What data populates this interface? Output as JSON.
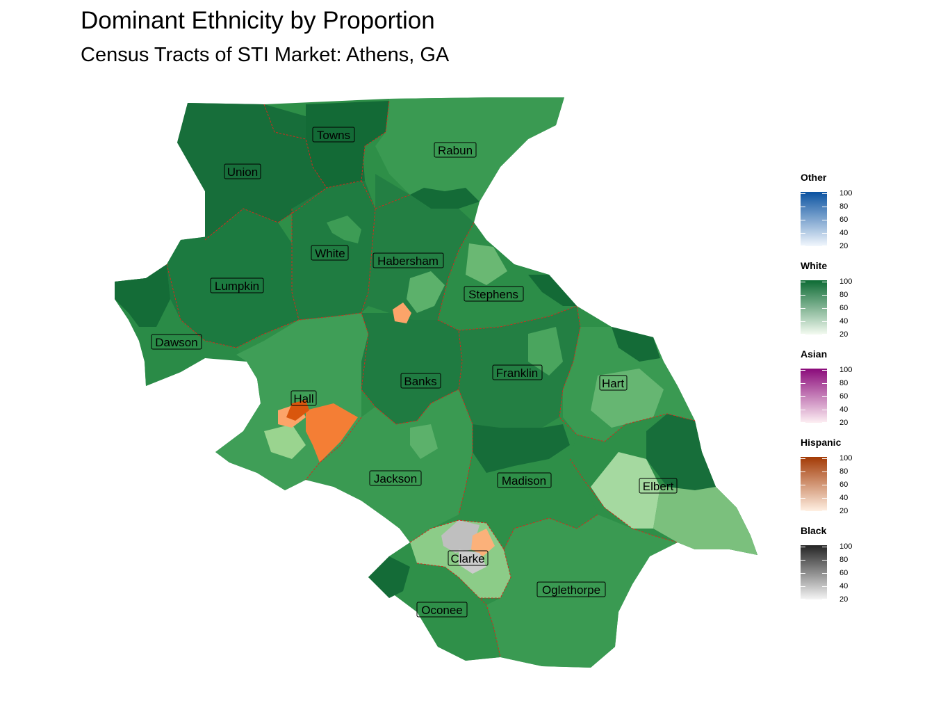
{
  "title": "Dominant Ethnicity by Proportion",
  "subtitle": "Census Tracts of STI Market: Athens, GA",
  "counties": [
    {
      "name": "Towns"
    },
    {
      "name": "Rabun"
    },
    {
      "name": "Union"
    },
    {
      "name": "White"
    },
    {
      "name": "Habersham"
    },
    {
      "name": "Lumpkin"
    },
    {
      "name": "Stephens"
    },
    {
      "name": "Dawson"
    },
    {
      "name": "Banks"
    },
    {
      "name": "Franklin"
    },
    {
      "name": "Hart"
    },
    {
      "name": "Hall"
    },
    {
      "name": "Jackson"
    },
    {
      "name": "Madison"
    },
    {
      "name": "Elbert"
    },
    {
      "name": "Clarke"
    },
    {
      "name": "Oglethorpe"
    },
    {
      "name": "Oconee"
    }
  ],
  "legend": [
    {
      "title": "Other",
      "colors": [
        "#f2f7fd",
        "#0b53a1"
      ],
      "ticks": [
        "100",
        "80",
        "60",
        "40",
        "20"
      ]
    },
    {
      "title": "White",
      "colors": [
        "#f4fbf1",
        "#0d6b34"
      ],
      "ticks": [
        "100",
        "80",
        "60",
        "40",
        "20"
      ]
    },
    {
      "title": "Asian",
      "colors": [
        "#fdeff3",
        "#8a0a7a"
      ],
      "ticks": [
        "100",
        "80",
        "60",
        "40",
        "20"
      ]
    },
    {
      "title": "Hispanic",
      "colors": [
        "#fff0e3",
        "#a33a05"
      ],
      "ticks": [
        "100",
        "80",
        "60",
        "40",
        "20"
      ]
    },
    {
      "title": "Black",
      "colors": [
        "#f5f5f5",
        "#242424"
      ],
      "ticks": [
        "100",
        "80",
        "60",
        "40",
        "20"
      ]
    }
  ]
}
